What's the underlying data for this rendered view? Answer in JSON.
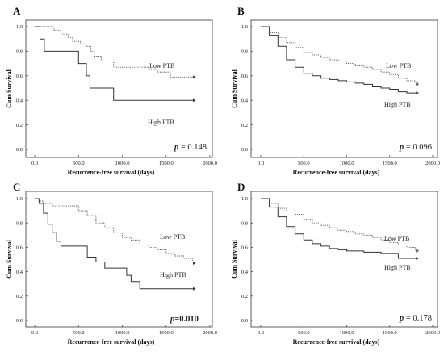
{
  "chart_data": [
    {
      "type": "line",
      "panel_label": "A",
      "xlabel": "Recurrence-free survival (days)",
      "ylabel": "Cum Survival",
      "xlim": [
        0,
        2000
      ],
      "ylim": [
        0,
        1
      ],
      "xticks": [
        "0.0",
        "500.0",
        "1000.0",
        "1500.0",
        "2000.0"
      ],
      "yticks": [
        "0.0",
        "0.2",
        "0.4",
        "0.6",
        "0.8",
        "1.0"
      ],
      "p_prefix": "p",
      "p_value": "= 0.148",
      "series": [
        {
          "name": "Low PTB",
          "style": "dotted",
          "x": [
            0,
            220,
            300,
            380,
            430,
            520,
            590,
            640,
            680,
            760,
            900,
            1150,
            1300,
            1400,
            1550,
            1830
          ],
          "y": [
            1.0,
            0.97,
            0.94,
            0.91,
            0.88,
            0.86,
            0.84,
            0.8,
            0.76,
            0.72,
            0.67,
            0.67,
            0.65,
            0.63,
            0.59,
            0.59
          ]
        },
        {
          "name": "High PTB",
          "style": "solid",
          "x": [
            0,
            60,
            110,
            500,
            590,
            630,
            900,
            1830
          ],
          "y": [
            1.0,
            0.9,
            0.8,
            0.7,
            0.6,
            0.5,
            0.4,
            0.4
          ]
        }
      ]
    },
    {
      "type": "line",
      "panel_label": "B",
      "xlabel": "Recurrence-free survival (days)",
      "ylabel": "Cum Survival",
      "xlim": [
        0,
        2000
      ],
      "ylim": [
        0,
        1
      ],
      "xticks": [
        "0.0",
        "500.0",
        "1000.0",
        "1500.0",
        "2000.0"
      ],
      "yticks": [
        "0.0",
        "0.2",
        "0.4",
        "0.6",
        "0.8",
        "1.0"
      ],
      "p_prefix": "p",
      "p_value": "= 0.096",
      "series": [
        {
          "name": "Low PTB",
          "style": "dotted",
          "x": [
            0,
            100,
            200,
            300,
            400,
            500,
            600,
            700,
            800,
            900,
            1000,
            1100,
            1200,
            1300,
            1400,
            1500,
            1600,
            1700,
            1800,
            1830
          ],
          "y": [
            1.0,
            0.95,
            0.91,
            0.87,
            0.83,
            0.79,
            0.77,
            0.75,
            0.73,
            0.72,
            0.7,
            0.68,
            0.67,
            0.65,
            0.63,
            0.61,
            0.58,
            0.56,
            0.54,
            0.53
          ]
        },
        {
          "name": "High PTB",
          "style": "solid",
          "x": [
            0,
            100,
            200,
            300,
            400,
            500,
            600,
            700,
            800,
            900,
            1000,
            1100,
            1200,
            1300,
            1400,
            1500,
            1600,
            1700,
            1830
          ],
          "y": [
            1.0,
            0.93,
            0.84,
            0.73,
            0.67,
            0.62,
            0.6,
            0.58,
            0.57,
            0.56,
            0.55,
            0.54,
            0.53,
            0.51,
            0.5,
            0.49,
            0.47,
            0.46,
            0.46
          ]
        }
      ]
    },
    {
      "type": "line",
      "panel_label": "C",
      "xlabel": "Recurrence-free survival (days)",
      "ylabel": "Cum Survival",
      "xlim": [
        0,
        2000
      ],
      "ylim": [
        0,
        1
      ],
      "xticks": [
        "0.0",
        "500.0",
        "1000.0",
        "1500.0",
        "2000.0"
      ],
      "yticks": [
        "0.0",
        "0.2",
        "0.4",
        "0.6",
        "0.8",
        "1.0"
      ],
      "p_prefix": "p",
      "p_value": "=0.010",
      "series": [
        {
          "name": "Low PTB",
          "style": "dotted",
          "x": [
            0,
            50,
            100,
            200,
            400,
            500,
            600,
            700,
            800,
            900,
            1000,
            1100,
            1200,
            1300,
            1400,
            1500,
            1600,
            1700,
            1800,
            1830
          ],
          "y": [
            1.0,
            0.98,
            0.96,
            0.94,
            0.94,
            0.9,
            0.86,
            0.8,
            0.76,
            0.72,
            0.68,
            0.66,
            0.62,
            0.6,
            0.58,
            0.55,
            0.53,
            0.51,
            0.48,
            0.47
          ]
        },
        {
          "name": "High PTB",
          "style": "solid",
          "x": [
            0,
            50,
            100,
            150,
            200,
            250,
            300,
            500,
            600,
            700,
            800,
            1000,
            1050,
            1100,
            1200,
            1830
          ],
          "y": [
            1.0,
            0.96,
            0.88,
            0.79,
            0.72,
            0.65,
            0.61,
            0.61,
            0.52,
            0.48,
            0.43,
            0.43,
            0.37,
            0.32,
            0.26,
            0.26
          ]
        }
      ]
    },
    {
      "type": "line",
      "panel_label": "D",
      "xlabel": "Recurrence-free survival (days)",
      "ylabel": "Cum Survival",
      "xlim": [
        0,
        2000
      ],
      "ylim": [
        0,
        1
      ],
      "xticks": [
        "0.0",
        "500.0",
        "1000.0",
        "1500.0",
        "2000.0"
      ],
      "yticks": [
        "0.0",
        "0.2",
        "0.4",
        "0.6",
        "0.8",
        "1.0"
      ],
      "p_prefix": "p",
      "p_value": "= 0.178",
      "series": [
        {
          "name": "Low PTB",
          "style": "dotted",
          "x": [
            0,
            100,
            200,
            300,
            400,
            500,
            600,
            700,
            800,
            900,
            1000,
            1100,
            1200,
            1300,
            1400,
            1500,
            1600,
            1700,
            1800,
            1830
          ],
          "y": [
            1.0,
            0.96,
            0.92,
            0.89,
            0.87,
            0.83,
            0.8,
            0.78,
            0.76,
            0.74,
            0.73,
            0.71,
            0.7,
            0.68,
            0.66,
            0.64,
            0.62,
            0.6,
            0.58,
            0.57
          ]
        },
        {
          "name": "High PTB",
          "style": "solid",
          "x": [
            0,
            100,
            200,
            300,
            400,
            500,
            600,
            700,
            800,
            900,
            1000,
            1200,
            1400,
            1600,
            1830
          ],
          "y": [
            1.0,
            0.93,
            0.85,
            0.77,
            0.71,
            0.66,
            0.63,
            0.61,
            0.59,
            0.58,
            0.57,
            0.56,
            0.55,
            0.51,
            0.51
          ]
        }
      ]
    }
  ]
}
